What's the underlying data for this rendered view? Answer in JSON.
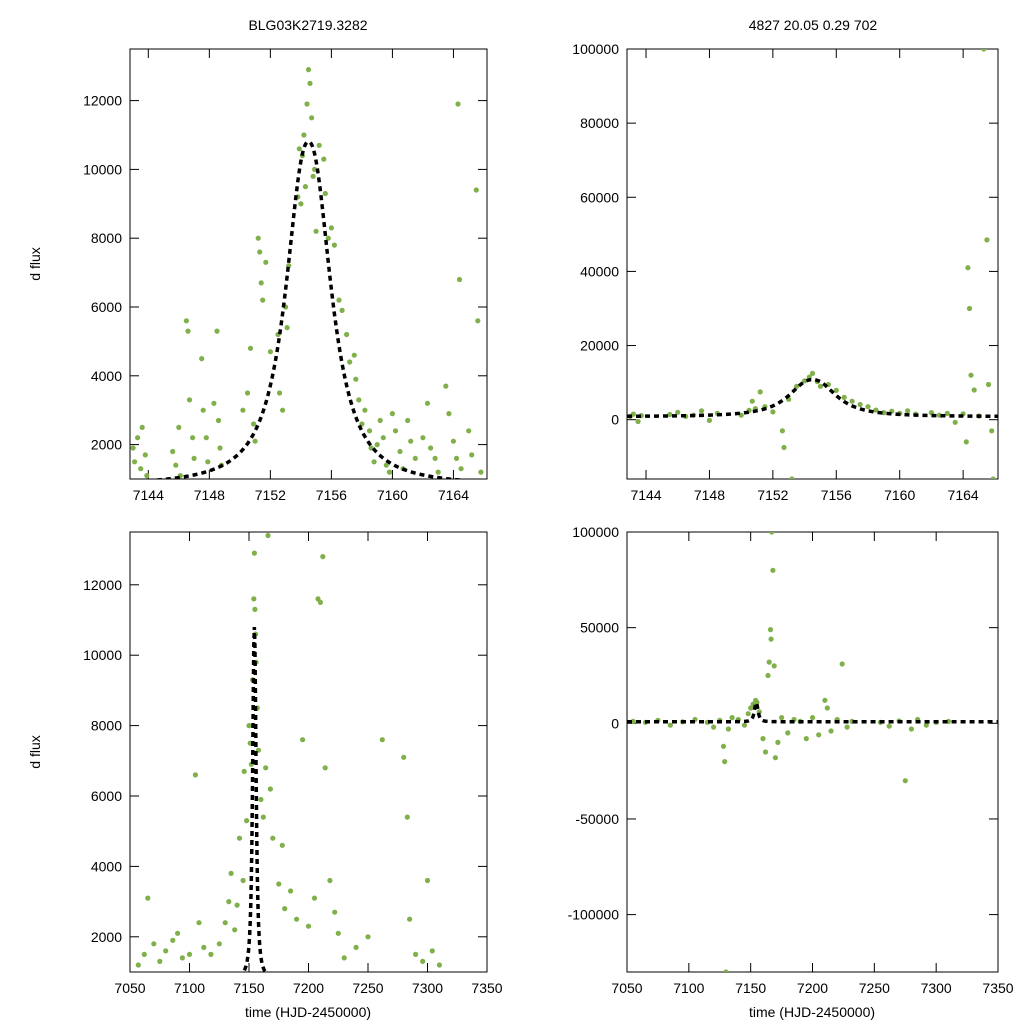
{
  "title_left": "BLG03K2719.3282",
  "title_right": "4827  20.05  0.29  702",
  "colors": {
    "points": "#7fb04a",
    "model": "#000000",
    "frame": "#000000"
  },
  "chart_data": [
    {
      "id": "top-left",
      "type": "scatter",
      "xlabel": "",
      "ylabel": "d flux",
      "xlim": [
        7142.8,
        7166.2
      ],
      "ylim": [
        1000,
        13500
      ],
      "xticks": [
        7144,
        7148,
        7152,
        7156,
        7160,
        7164
      ],
      "yticks": [
        2000,
        4000,
        6000,
        8000,
        10000,
        12000
      ],
      "xtick_labels": [
        "7144",
        "7148",
        "7152",
        "7156",
        "7160",
        "7164"
      ],
      "ytick_labels": [
        "2000",
        "4000",
        "6000",
        "8000",
        "10000",
        "12000"
      ],
      "model": {
        "t0": 7154.5,
        "peak": 10800,
        "base": 800,
        "tau": 1.7,
        "exponent": 1.15
      },
      "points": [
        [
          7143.0,
          1900
        ],
        [
          7143.1,
          1500
        ],
        [
          7143.3,
          2200
        ],
        [
          7143.5,
          1300
        ],
        [
          7143.6,
          2500
        ],
        [
          7143.8,
          1700
        ],
        [
          7143.9,
          1100
        ],
        [
          7145.6,
          1800
        ],
        [
          7145.8,
          1400
        ],
        [
          7146.0,
          2500
        ],
        [
          7146.1,
          1100
        ],
        [
          7146.5,
          5600
        ],
        [
          7146.6,
          5300
        ],
        [
          7146.7,
          3300
        ],
        [
          7146.9,
          2200
        ],
        [
          7147.0,
          1600
        ],
        [
          7147.5,
          4500
        ],
        [
          7147.6,
          3000
        ],
        [
          7147.8,
          2200
        ],
        [
          7147.9,
          1500
        ],
        [
          7148.3,
          3200
        ],
        [
          7148.5,
          5300
        ],
        [
          7148.6,
          2700
        ],
        [
          7148.7,
          1900
        ],
        [
          7148.8,
          1400
        ],
        [
          7150.2,
          3000
        ],
        [
          7150.5,
          3500
        ],
        [
          7150.7,
          4800
        ],
        [
          7150.9,
          2600
        ],
        [
          7151.0,
          2100
        ],
        [
          7151.2,
          8000
        ],
        [
          7151.3,
          7600
        ],
        [
          7151.4,
          6700
        ],
        [
          7151.5,
          6200
        ],
        [
          7151.7,
          7300
        ],
        [
          7152.0,
          4700
        ],
        [
          7152.5,
          5200
        ],
        [
          7152.6,
          3500
        ],
        [
          7152.8,
          3000
        ],
        [
          7153.0,
          6000
        ],
        [
          7153.1,
          5400
        ],
        [
          7153.2,
          7200
        ],
        [
          7153.8,
          9200
        ],
        [
          7153.9,
          10600
        ],
        [
          7154.0,
          9000
        ],
        [
          7154.1,
          10400
        ],
        [
          7154.2,
          11000
        ],
        [
          7154.3,
          9500
        ],
        [
          7154.4,
          11900
        ],
        [
          7154.5,
          12900
        ],
        [
          7154.6,
          12500
        ],
        [
          7154.7,
          11500
        ],
        [
          7154.8,
          9800
        ],
        [
          7154.9,
          10000
        ],
        [
          7155.0,
          8200
        ],
        [
          7155.2,
          10700
        ],
        [
          7155.5,
          10300
        ],
        [
          7155.6,
          9300
        ],
        [
          7155.8,
          8000
        ],
        [
          7156.0,
          8300
        ],
        [
          7156.2,
          7800
        ],
        [
          7156.5,
          6200
        ],
        [
          7156.7,
          5900
        ],
        [
          7157.0,
          5200
        ],
        [
          7157.2,
          4400
        ],
        [
          7157.5,
          4600
        ],
        [
          7157.6,
          3900
        ],
        [
          7157.8,
          3300
        ],
        [
          7158.0,
          2600
        ],
        [
          7158.2,
          3000
        ],
        [
          7158.5,
          2400
        ],
        [
          7158.6,
          1900
        ],
        [
          7158.8,
          1500
        ],
        [
          7159.0,
          2000
        ],
        [
          7159.2,
          2700
        ],
        [
          7159.4,
          2200
        ],
        [
          7159.6,
          1400
        ],
        [
          7159.8,
          1200
        ],
        [
          7160.0,
          2900
        ],
        [
          7160.2,
          2400
        ],
        [
          7160.5,
          1800
        ],
        [
          7160.7,
          1300
        ],
        [
          7161.0,
          2700
        ],
        [
          7161.2,
          2100
        ],
        [
          7161.5,
          1600
        ],
        [
          7162.0,
          2200
        ],
        [
          7162.3,
          3200
        ],
        [
          7162.5,
          1900
        ],
        [
          7162.8,
          1600
        ],
        [
          7163.0,
          1200
        ],
        [
          7163.5,
          3700
        ],
        [
          7163.7,
          2900
        ],
        [
          7164.0,
          2100
        ],
        [
          7164.2,
          1600
        ],
        [
          7164.3,
          11900
        ],
        [
          7164.4,
          6800
        ],
        [
          7164.5,
          1300
        ],
        [
          7165.0,
          2400
        ],
        [
          7165.2,
          1700
        ],
        [
          7165.5,
          9400
        ],
        [
          7165.6,
          5600
        ],
        [
          7165.8,
          1200
        ]
      ]
    },
    {
      "id": "top-right",
      "type": "scatter",
      "xlabel": "",
      "ylabel": "",
      "xlim": [
        7142.8,
        7166.2
      ],
      "ylim": [
        -16000,
        100000
      ],
      "xticks": [
        7144,
        7148,
        7152,
        7156,
        7160,
        7164
      ],
      "yticks": [
        0,
        20000,
        40000,
        60000,
        80000,
        100000
      ],
      "xtick_labels": [
        "7144",
        "7148",
        "7152",
        "7156",
        "7160",
        "7164"
      ],
      "ytick_labels": [
        "0",
        "20000",
        "40000",
        "60000",
        "80000",
        "100000"
      ],
      "model": {
        "t0": 7154.5,
        "peak": 10800,
        "base": 800,
        "tau": 1.7,
        "exponent": 1.15
      },
      "points": [
        [
          7143.0,
          900
        ],
        [
          7143.2,
          1500
        ],
        [
          7143.5,
          -500
        ],
        [
          7143.7,
          1100
        ],
        [
          7145.5,
          1400
        ],
        [
          7146.0,
          2000
        ],
        [
          7146.5,
          900
        ],
        [
          7147.0,
          1200
        ],
        [
          7147.5,
          2400
        ],
        [
          7148.0,
          -200
        ],
        [
          7148.5,
          1700
        ],
        [
          7150.0,
          1200
        ],
        [
          7150.5,
          2500
        ],
        [
          7150.7,
          5000
        ],
        [
          7150.9,
          3000
        ],
        [
          7151.2,
          7500
        ],
        [
          7151.5,
          3500
        ],
        [
          7152.0,
          2100
        ],
        [
          7152.6,
          -3000
        ],
        [
          7152.7,
          -7500
        ],
        [
          7153.0,
          5500
        ],
        [
          7153.2,
          -16000
        ],
        [
          7153.5,
          9000
        ],
        [
          7154.0,
          10500
        ],
        [
          7154.3,
          11500
        ],
        [
          7154.5,
          12500
        ],
        [
          7154.8,
          10300
        ],
        [
          7155.0,
          9000
        ],
        [
          7155.5,
          9500
        ],
        [
          7156.0,
          7900
        ],
        [
          7156.5,
          6000
        ],
        [
          7157.0,
          5000
        ],
        [
          7157.5,
          4100
        ],
        [
          7158.0,
          3500
        ],
        [
          7158.5,
          2600
        ],
        [
          7159.0,
          1900
        ],
        [
          7159.5,
          2300
        ],
        [
          7160.0,
          1700
        ],
        [
          7160.5,
          2400
        ],
        [
          7161.0,
          1500
        ],
        [
          7162.0,
          1900
        ],
        [
          7162.5,
          1200
        ],
        [
          7163.0,
          1700
        ],
        [
          7163.5,
          -700
        ],
        [
          7164.0,
          1600
        ],
        [
          7164.2,
          -6000
        ],
        [
          7164.3,
          41000
        ],
        [
          7164.4,
          30000
        ],
        [
          7164.5,
          12000
        ],
        [
          7164.7,
          8000
        ],
        [
          7165.0,
          1000
        ],
        [
          7165.3,
          100000
        ],
        [
          7165.5,
          48500
        ],
        [
          7165.6,
          9500
        ],
        [
          7165.8,
          -3000
        ],
        [
          7165.9,
          -16000
        ]
      ]
    },
    {
      "id": "bottom-left",
      "type": "scatter",
      "xlabel": "time (HJD-2450000)",
      "ylabel": "d flux",
      "xlim": [
        7050,
        7350
      ],
      "ylim": [
        1000,
        13500
      ],
      "xticks": [
        7050,
        7100,
        7150,
        7200,
        7250,
        7300,
        7350
      ],
      "yticks": [
        2000,
        4000,
        6000,
        8000,
        10000,
        12000
      ],
      "xtick_labels": [
        "7050",
        "7100",
        "7150",
        "7200",
        "7250",
        "7300",
        "7350"
      ],
      "ytick_labels": [
        "2000",
        "4000",
        "6000",
        "8000",
        "10000",
        "12000"
      ],
      "model": {
        "t0": 7154.5,
        "peak": 10800,
        "base": 800,
        "tau": 1.7,
        "exponent": 1.15
      },
      "points": [
        [
          7057,
          1200
        ],
        [
          7062,
          1500
        ],
        [
          7065,
          3100
        ],
        [
          7070,
          1800
        ],
        [
          7075,
          1300
        ],
        [
          7080,
          1600
        ],
        [
          7086,
          1900
        ],
        [
          7090,
          2100
        ],
        [
          7094,
          1400
        ],
        [
          7100,
          1500
        ],
        [
          7105,
          6600
        ],
        [
          7108,
          2400
        ],
        [
          7112,
          1700
        ],
        [
          7118,
          1500
        ],
        [
          7125,
          1800
        ],
        [
          7130,
          2400
        ],
        [
          7133,
          3000
        ],
        [
          7135,
          3800
        ],
        [
          7138,
          2200
        ],
        [
          7140,
          2900
        ],
        [
          7142,
          4800
        ],
        [
          7145,
          3600
        ],
        [
          7146,
          6700
        ],
        [
          7148,
          5300
        ],
        [
          7150,
          8000
        ],
        [
          7151,
          7500
        ],
        [
          7152,
          6900
        ],
        [
          7153,
          9300
        ],
        [
          7154,
          11600
        ],
        [
          7154.5,
          12900
        ],
        [
          7155,
          11300
        ],
        [
          7155.5,
          10600
        ],
        [
          7156,
          9800
        ],
        [
          7157,
          8500
        ],
        [
          7158,
          7300
        ],
        [
          7160,
          5900
        ],
        [
          7162,
          5400
        ],
        [
          7164,
          6800
        ],
        [
          7166,
          13400
        ],
        [
          7168,
          6200
        ],
        [
          7170,
          4800
        ],
        [
          7175,
          3500
        ],
        [
          7178,
          4600
        ],
        [
          7180,
          2800
        ],
        [
          7185,
          3300
        ],
        [
          7190,
          2500
        ],
        [
          7195,
          7600
        ],
        [
          7200,
          2300
        ],
        [
          7205,
          3100
        ],
        [
          7208,
          11600
        ],
        [
          7210,
          11500
        ],
        [
          7212,
          12800
        ],
        [
          7214,
          6800
        ],
        [
          7218,
          3600
        ],
        [
          7222,
          2700
        ],
        [
          7225,
          2100
        ],
        [
          7230,
          1400
        ],
        [
          7240,
          1700
        ],
        [
          7250,
          2000
        ],
        [
          7262,
          7600
        ],
        [
          7280,
          7100
        ],
        [
          7283,
          5400
        ],
        [
          7285,
          2500
        ],
        [
          7290,
          1500
        ],
        [
          7296,
          1300
        ],
        [
          7300,
          3600
        ],
        [
          7304,
          1600
        ],
        [
          7310,
          1200
        ]
      ]
    },
    {
      "id": "bottom-right",
      "type": "scatter",
      "xlabel": "time (HJD-2450000)",
      "ylabel": "",
      "xlim": [
        7050,
        7350
      ],
      "ylim": [
        -130000,
        100000
      ],
      "xticks": [
        7050,
        7100,
        7150,
        7200,
        7250,
        7300,
        7350
      ],
      "yticks": [
        -100000,
        -50000,
        0,
        50000,
        100000
      ],
      "xtick_labels": [
        "7050",
        "7100",
        "7150",
        "7200",
        "7250",
        "7300",
        "7350"
      ],
      "ytick_labels": [
        "-100000",
        "-50000",
        "0",
        "50000",
        "100000"
      ],
      "model": {
        "t0": 7154.5,
        "peak": 10800,
        "base": 800,
        "tau": 1.7,
        "exponent": 1.15
      },
      "points": [
        [
          7055,
          1000
        ],
        [
          7065,
          500
        ],
        [
          7075,
          1500
        ],
        [
          7085,
          -1000
        ],
        [
          7095,
          800
        ],
        [
          7105,
          2000
        ],
        [
          7115,
          500
        ],
        [
          7120,
          -2000
        ],
        [
          7125,
          1500
        ],
        [
          7128,
          -12000
        ],
        [
          7129,
          -20000
        ],
        [
          7130,
          -130000
        ],
        [
          7132,
          -3000
        ],
        [
          7135,
          3000
        ],
        [
          7140,
          2000
        ],
        [
          7145,
          -1000
        ],
        [
          7148,
          5000
        ],
        [
          7150,
          8000
        ],
        [
          7152,
          10000
        ],
        [
          7154,
          12000
        ],
        [
          7155,
          11000
        ],
        [
          7157,
          6000
        ],
        [
          7160,
          -8000
        ],
        [
          7162,
          -15000
        ],
        [
          7164,
          25000
        ],
        [
          7165,
          32000
        ],
        [
          7166,
          49000
        ],
        [
          7166.5,
          44000
        ],
        [
          7167,
          100000
        ],
        [
          7168,
          80000
        ],
        [
          7169,
          30000
        ],
        [
          7170,
          -18000
        ],
        [
          7172,
          -10000
        ],
        [
          7175,
          3000
        ],
        [
          7180,
          -5000
        ],
        [
          7185,
          2000
        ],
        [
          7190,
          1000
        ],
        [
          7195,
          -8000
        ],
        [
          7200,
          3000
        ],
        [
          7205,
          -6000
        ],
        [
          7210,
          12000
        ],
        [
          7212,
          8000
        ],
        [
          7215,
          -4000
        ],
        [
          7220,
          2000
        ],
        [
          7224,
          31000
        ],
        [
          7228,
          -2000
        ],
        [
          7232,
          1000
        ],
        [
          7255,
          500
        ],
        [
          7262,
          -1500
        ],
        [
          7270,
          1200
        ],
        [
          7275,
          -30000
        ],
        [
          7280,
          -3000
        ],
        [
          7285,
          2000
        ],
        [
          7292,
          -1000
        ],
        [
          7300,
          500
        ],
        [
          7310,
          1000
        ]
      ]
    }
  ]
}
